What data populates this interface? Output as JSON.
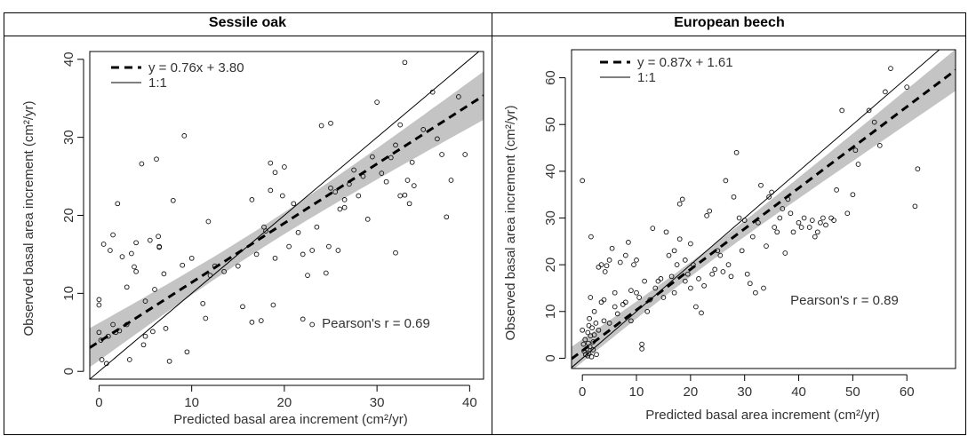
{
  "chart_data": [
    {
      "type": "scatter",
      "title": "Sessile oak",
      "xlabel": "Predicted basal area increment (cm²/yr)",
      "ylabel": "Observed basal area increment (cm²/yr)",
      "xlim": [
        -1,
        41.5
      ],
      "ylim": [
        -1,
        41
      ],
      "xticks": [
        0,
        10,
        20,
        30,
        40
      ],
      "yticks": [
        0,
        10,
        20,
        30,
        40
      ],
      "fit": {
        "label": "y = 0.76x + 3.80",
        "slope": 0.76,
        "intercept": 3.8
      },
      "identity_label": "1:1",
      "pearson_label": "Pearson's r = 0.69",
      "legend_position": "top-left",
      "points": [
        [
          0,
          8.5
        ],
        [
          0,
          9.2
        ],
        [
          0,
          5
        ],
        [
          0.2,
          4
        ],
        [
          0.3,
          1.5
        ],
        [
          0.5,
          16.3
        ],
        [
          0.8,
          1
        ],
        [
          1,
          4.5
        ],
        [
          1.2,
          15.5
        ],
        [
          1.5,
          17.5
        ],
        [
          1.5,
          6
        ],
        [
          1.8,
          5
        ],
        [
          2,
          21.5
        ],
        [
          2.2,
          5.2
        ],
        [
          2.5,
          14.7
        ],
        [
          3,
          10.8
        ],
        [
          3,
          6
        ],
        [
          3.3,
          1.5
        ],
        [
          3.5,
          15.1
        ],
        [
          3.8,
          13.4
        ],
        [
          4,
          12.8
        ],
        [
          4,
          16.5
        ],
        [
          4.6,
          26.6
        ],
        [
          4.8,
          3.4
        ],
        [
          5,
          9
        ],
        [
          5,
          4.5
        ],
        [
          5.5,
          16.8
        ],
        [
          5.8,
          5.1
        ],
        [
          6,
          10.5
        ],
        [
          6.2,
          27.2
        ],
        [
          6.4,
          17.3
        ],
        [
          6.5,
          15.9
        ],
        [
          6.5,
          16
        ],
        [
          7,
          12.5
        ],
        [
          7.2,
          5.5
        ],
        [
          7.6,
          1.3
        ],
        [
          8,
          21.9
        ],
        [
          9,
          13.6
        ],
        [
          9.2,
          30.2
        ],
        [
          9.5,
          2.5
        ],
        [
          10,
          14.5
        ],
        [
          11.2,
          8.7
        ],
        [
          11.5,
          6.8
        ],
        [
          11.8,
          19.2
        ],
        [
          12,
          12.3
        ],
        [
          12.5,
          13.5
        ],
        [
          13.5,
          12.8
        ],
        [
          15,
          13.5
        ],
        [
          15.5,
          8.3
        ],
        [
          16.5,
          22
        ],
        [
          16.5,
          6.3
        ],
        [
          17,
          15
        ],
        [
          17.5,
          6.5
        ],
        [
          17.8,
          18.5
        ],
        [
          18,
          18
        ],
        [
          18.5,
          26.7
        ],
        [
          18.5,
          23.2
        ],
        [
          18.8,
          8.5
        ],
        [
          19,
          25.5
        ],
        [
          19,
          14.5
        ],
        [
          19.8,
          22.5
        ],
        [
          20,
          26.2
        ],
        [
          20.5,
          16
        ],
        [
          21,
          21.5
        ],
        [
          21.5,
          17.8
        ],
        [
          22,
          15
        ],
        [
          22,
          6.7
        ],
        [
          22.5,
          12.3
        ],
        [
          23,
          15.5
        ],
        [
          23,
          6
        ],
        [
          23.5,
          18.5
        ],
        [
          24,
          31.5
        ],
        [
          24.5,
          12.6
        ],
        [
          24.8,
          16
        ],
        [
          25,
          23.5
        ],
        [
          25,
          31.8
        ],
        [
          25.5,
          23
        ],
        [
          25.8,
          15.5
        ],
        [
          26,
          20.8
        ],
        [
          26.5,
          22
        ],
        [
          26.5,
          21
        ],
        [
          27,
          24
        ],
        [
          27.5,
          25.8
        ],
        [
          28,
          22.5
        ],
        [
          28.5,
          25
        ],
        [
          29,
          19.5
        ],
        [
          29.5,
          27.5
        ],
        [
          30,
          34.5
        ],
        [
          30.5,
          25.4
        ],
        [
          31,
          24.3
        ],
        [
          31.5,
          27.4
        ],
        [
          32,
          15.2
        ],
        [
          32,
          29
        ],
        [
          32.5,
          31.6
        ],
        [
          32.5,
          22.5
        ],
        [
          33,
          39.6
        ],
        [
          33,
          22.6
        ],
        [
          33.3,
          24.5
        ],
        [
          33.5,
          21.5
        ],
        [
          33.8,
          26.8
        ],
        [
          34,
          23.8
        ],
        [
          35,
          31
        ],
        [
          36,
          35.8
        ],
        [
          36.5,
          29.8
        ],
        [
          37,
          27.8
        ],
        [
          37.5,
          19.8
        ],
        [
          38,
          24.5
        ],
        [
          38.8,
          35.2
        ],
        [
          39.5,
          27.8
        ]
      ]
    },
    {
      "type": "scatter",
      "title": "European beech",
      "xlabel": "Predicted basal area increment (cm²/yr)",
      "ylabel": "Observed basal area increment (cm²/yr)",
      "xlim": [
        -2,
        69
      ],
      "ylim": [
        -2.2,
        66
      ],
      "xticks": [
        0,
        10,
        20,
        30,
        40,
        50,
        60
      ],
      "yticks": [
        0,
        10,
        20,
        30,
        40,
        50,
        60
      ],
      "fit": {
        "label": "y = 0.87x + 1.61",
        "slope": 0.87,
        "intercept": 1.61
      },
      "identity_label": "1:1",
      "pearson_label": "Pearson's r = 0.89",
      "legend_position": "top-left",
      "points": [
        [
          0,
          38
        ],
        [
          0,
          6
        ],
        [
          0.2,
          3
        ],
        [
          0.3,
          1.5
        ],
        [
          0.5,
          4
        ],
        [
          0.6,
          0.8
        ],
        [
          0.8,
          2
        ],
        [
          1,
          5.5
        ],
        [
          1,
          0.5
        ],
        [
          1.1,
          3.2
        ],
        [
          1.2,
          1
        ],
        [
          1.2,
          7
        ],
        [
          1.3,
          8.5
        ],
        [
          1.4,
          2.5
        ],
        [
          1.5,
          4.8
        ],
        [
          1.5,
          13
        ],
        [
          1.6,
          26
        ],
        [
          1.7,
          0.3
        ],
        [
          1.8,
          6.5
        ],
        [
          2,
          3.5
        ],
        [
          2,
          1.8
        ],
        [
          2.2,
          5
        ],
        [
          2.2,
          10
        ],
        [
          2.5,
          7.5
        ],
        [
          2.6,
          0.8
        ],
        [
          3,
          6
        ],
        [
          3,
          19.5
        ],
        [
          3.5,
          12
        ],
        [
          3.5,
          20
        ],
        [
          4,
          8
        ],
        [
          4,
          12.5
        ],
        [
          4.2,
          18.5
        ],
        [
          4.5,
          19.8
        ],
        [
          5,
          7.5
        ],
        [
          5,
          21
        ],
        [
          5.5,
          23.5
        ],
        [
          6,
          14
        ],
        [
          6,
          11
        ],
        [
          6.5,
          9.5
        ],
        [
          7,
          20.5
        ],
        [
          7.5,
          11.5
        ],
        [
          8,
          12
        ],
        [
          8,
          22
        ],
        [
          8.5,
          24.8
        ],
        [
          9,
          14.5
        ],
        [
          9,
          8
        ],
        [
          9.5,
          20
        ],
        [
          10,
          21
        ],
        [
          10,
          14
        ],
        [
          10.5,
          13
        ],
        [
          11,
          3
        ],
        [
          11,
          2
        ],
        [
          11.5,
          16.5
        ],
        [
          12,
          10
        ],
        [
          12.5,
          12.5
        ],
        [
          13,
          27.8
        ],
        [
          13.5,
          15
        ],
        [
          14,
          16.5
        ],
        [
          14.5,
          17
        ],
        [
          15,
          13
        ],
        [
          15.5,
          27
        ],
        [
          16,
          22
        ],
        [
          16.5,
          17.5
        ],
        [
          17,
          14
        ],
        [
          17,
          23
        ],
        [
          17.5,
          20
        ],
        [
          18,
          25.5
        ],
        [
          18,
          33
        ],
        [
          18.5,
          34
        ],
        [
          19,
          21
        ],
        [
          19,
          16.5
        ],
        [
          19.5,
          18
        ],
        [
          20,
          24.5
        ],
        [
          20,
          15
        ],
        [
          20.5,
          20
        ],
        [
          21,
          11
        ],
        [
          21.5,
          17
        ],
        [
          22,
          9.7
        ],
        [
          22.5,
          15.5
        ],
        [
          23,
          30.5
        ],
        [
          23.5,
          31.5
        ],
        [
          24,
          18
        ],
        [
          24.5,
          19
        ],
        [
          25,
          23
        ],
        [
          25.5,
          22
        ],
        [
          26,
          18.5
        ],
        [
          26.5,
          38
        ],
        [
          27,
          20
        ],
        [
          27.5,
          17.5
        ],
        [
          28,
          34.5
        ],
        [
          28.5,
          44
        ],
        [
          29,
          30
        ],
        [
          29.5,
          23
        ],
        [
          30,
          29.5
        ],
        [
          30.5,
          18
        ],
        [
          31,
          16
        ],
        [
          31.5,
          26
        ],
        [
          32,
          14
        ],
        [
          32.5,
          29
        ],
        [
          33,
          37
        ],
        [
          33.5,
          15
        ],
        [
          34,
          24
        ],
        [
          34.5,
          34.5
        ],
        [
          35,
          35.5
        ],
        [
          35.5,
          28
        ],
        [
          36,
          27
        ],
        [
          36.5,
          30
        ],
        [
          37,
          32
        ],
        [
          37.5,
          22.5
        ],
        [
          38,
          34
        ],
        [
          38.5,
          31
        ],
        [
          39,
          27
        ],
        [
          40,
          29
        ],
        [
          40.5,
          28
        ],
        [
          41,
          30
        ],
        [
          42,
          28
        ],
        [
          42.5,
          29.5
        ],
        [
          43,
          26
        ],
        [
          43.5,
          27
        ],
        [
          44,
          29
        ],
        [
          44.5,
          30
        ],
        [
          45,
          28.5
        ],
        [
          46,
          30
        ],
        [
          46.5,
          29.5
        ],
        [
          47,
          36
        ],
        [
          48,
          53
        ],
        [
          49,
          31
        ],
        [
          50,
          35
        ],
        [
          50.5,
          44.5
        ],
        [
          51,
          41.5
        ],
        [
          53,
          53
        ],
        [
          54,
          50.5
        ],
        [
          55,
          45.5
        ],
        [
          56,
          57
        ],
        [
          57,
          62
        ],
        [
          60,
          58
        ],
        [
          61.5,
          32.5
        ],
        [
          62,
          40.5
        ]
      ]
    }
  ]
}
